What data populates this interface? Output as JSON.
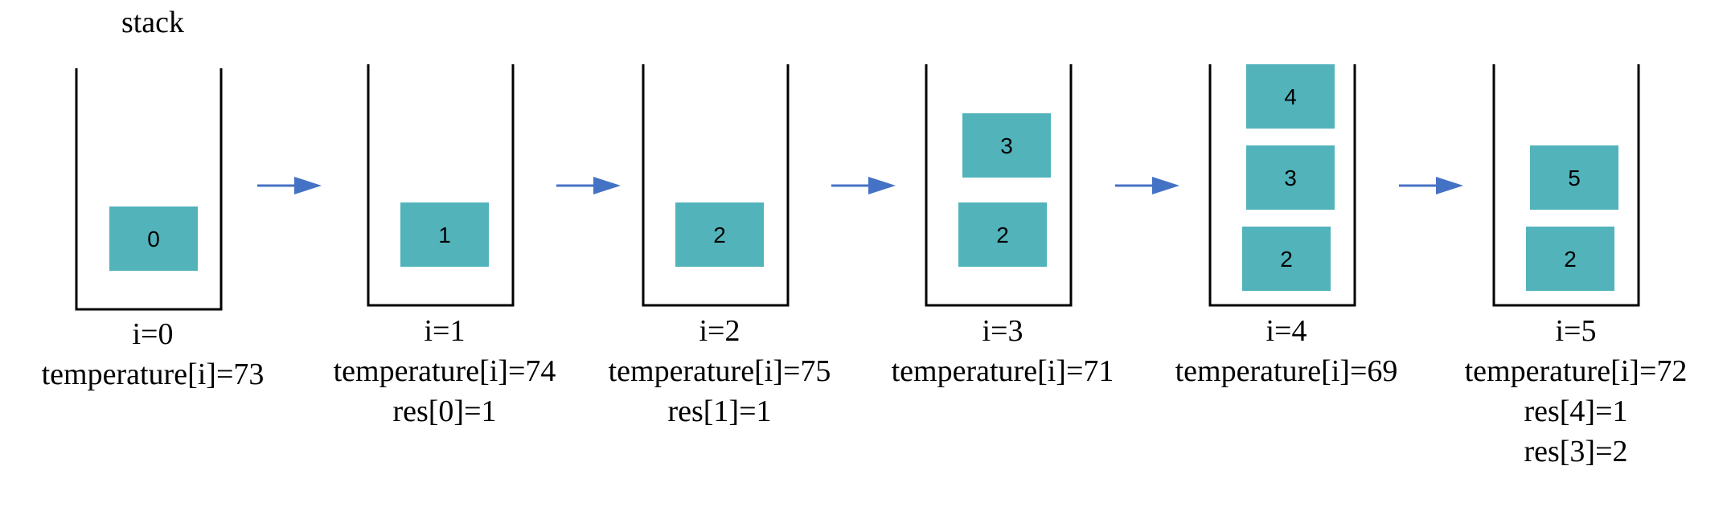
{
  "title": "stack",
  "colors": {
    "block": "#52b3bb",
    "arrow": "#4472c4",
    "container": "#000000",
    "text": "#000000"
  },
  "steps": [
    {
      "blocks": [
        "0"
      ],
      "lines": [
        "i=0",
        "temperature[i]=73"
      ]
    },
    {
      "blocks": [
        "1"
      ],
      "lines": [
        "i=1",
        "temperature[i]=74",
        "res[0]=1"
      ]
    },
    {
      "blocks": [
        "2"
      ],
      "lines": [
        "i=2",
        "temperature[i]=75",
        "res[1]=1"
      ]
    },
    {
      "blocks": [
        "2",
        "3"
      ],
      "lines": [
        "i=3",
        "temperature[i]=71"
      ]
    },
    {
      "blocks": [
        "2",
        "3",
        "4"
      ],
      "lines": [
        "i=4",
        "temperature[i]=69"
      ]
    },
    {
      "blocks": [
        "2",
        "5"
      ],
      "lines": [
        "i=5",
        "temperature[i]=72",
        "res[4]=1",
        "res[3]=2"
      ]
    }
  ]
}
